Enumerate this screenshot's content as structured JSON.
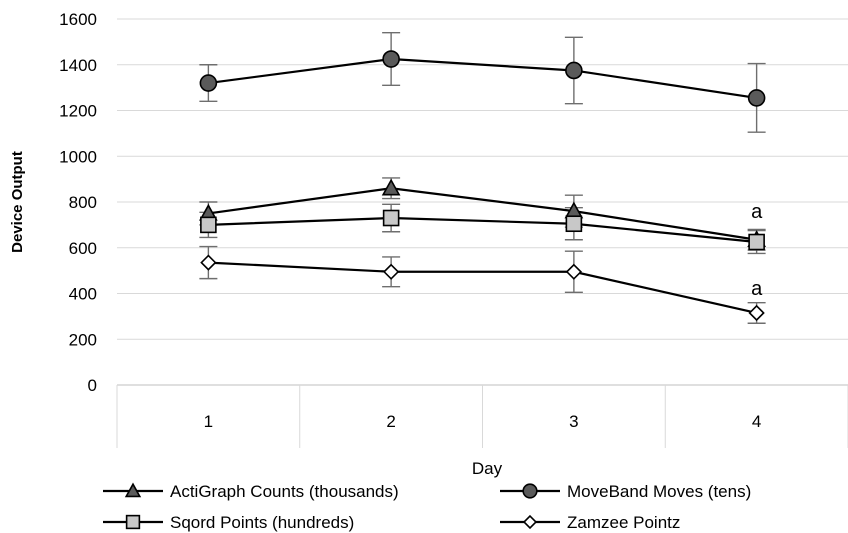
{
  "chart_data": {
    "type": "line",
    "xlabel": "Day",
    "ylabel": "Device Output",
    "ylim": [
      0,
      1600
    ],
    "yticks": [
      "0",
      "200",
      "400",
      "600",
      "800",
      "1000",
      "1200",
      "1400",
      "1600"
    ],
    "categories": [
      "1",
      "2",
      "3",
      "4"
    ],
    "grid": "horizontal",
    "legend_position": "bottom",
    "series": [
      {
        "name": "ActiGraph Counts (thousands)",
        "marker": "triangle",
        "color": "#5a5a5a",
        "values": [
          750,
          860,
          760,
          635
        ],
        "error": [
          50,
          45,
          70,
          45
        ]
      },
      {
        "name": "MoveBand Moves (tens)",
        "marker": "circle",
        "color": "#5a5a5a",
        "values": [
          1320,
          1425,
          1375,
          1255
        ],
        "error": [
          80,
          115,
          145,
          150
        ]
      },
      {
        "name": "Sqord Points (hundreds)",
        "marker": "square",
        "color": "#c8c8c8",
        "values": [
          700,
          730,
          705,
          625
        ],
        "error": [
          55,
          60,
          70,
          50
        ]
      },
      {
        "name": "Zamzee Pointz",
        "marker": "diamond",
        "color": "#ffffff",
        "values": [
          535,
          495,
          495,
          315
        ],
        "error": [
          70,
          65,
          90,
          45
        ]
      }
    ],
    "annotations": [
      {
        "text": "a",
        "category": "4",
        "value": 760
      },
      {
        "text": "a",
        "category": "4",
        "value": 425
      }
    ]
  }
}
